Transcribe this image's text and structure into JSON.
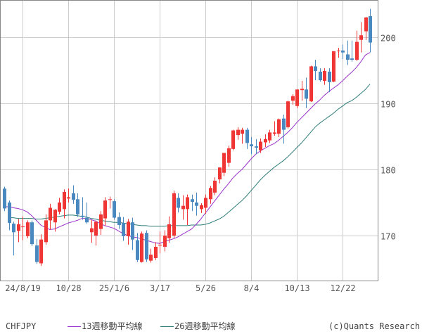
{
  "symbol": "CHFJPY",
  "copyright": "(c)Quants Research",
  "colors": {
    "up": "#f03535",
    "down": "#4a89c0",
    "ma13": "#9933cc",
    "ma26": "#2e7d7a",
    "grid": "#cccccc",
    "frame": "#888888"
  },
  "legend": {
    "ma13_label": "13週移動平均線",
    "ma26_label": "26週移動平均線"
  },
  "chart_data": {
    "type": "candlestick",
    "title": "CHFJPY",
    "xlabel": "",
    "ylabel": "",
    "ylim": [
      163.6,
      205.6
    ],
    "yticks": [
      170,
      180,
      190,
      200
    ],
    "xticks": [
      {
        "index": 4,
        "label": "24/8/19"
      },
      {
        "index": 14,
        "label": "10/28"
      },
      {
        "index": 24,
        "label": "25/1/6"
      },
      {
        "index": 34,
        "label": "3/17"
      },
      {
        "index": 44,
        "label": "5/26"
      },
      {
        "index": 54,
        "label": "8/4"
      },
      {
        "index": 64,
        "label": "10/13"
      },
      {
        "index": 74,
        "label": "12/22"
      }
    ],
    "grid": true,
    "legend_position": "bottom",
    "series": [
      {
        "name": "CHFJPY",
        "type": "candlestick",
        "ohlc": [
          [
            177.1,
            177.4,
            173.7,
            174.1
          ],
          [
            175.0,
            175.3,
            170.8,
            171.9
          ],
          [
            171.8,
            172.1,
            167.0,
            170.5
          ],
          [
            170.7,
            172.5,
            169.0,
            171.7
          ],
          [
            171.3,
            172.9,
            169.3,
            171.4
          ],
          [
            169.9,
            172.3,
            169.6,
            172.0
          ],
          [
            172.0,
            172.3,
            168.4,
            168.7
          ],
          [
            168.5,
            169.5,
            165.7,
            166.0
          ],
          [
            165.8,
            170.2,
            165.4,
            169.4
          ],
          [
            169.0,
            173.2,
            168.6,
            172.3
          ],
          [
            172.3,
            174.8,
            170.9,
            174.2
          ],
          [
            172.0,
            174.0,
            170.6,
            173.9
          ],
          [
            173.6,
            175.7,
            173.2,
            175.0
          ],
          [
            174.0,
            177.0,
            172.6,
            176.6
          ],
          [
            175.6,
            177.1,
            175.0,
            175.8
          ],
          [
            176.4,
            177.6,
            174.8,
            175.4
          ],
          [
            175.5,
            176.4,
            172.8,
            173.2
          ],
          [
            173.0,
            175.8,
            172.4,
            172.8
          ],
          [
            172.7,
            175.0,
            171.8,
            172.0
          ],
          [
            170.5,
            172.4,
            168.9,
            171.1
          ],
          [
            170.0,
            171.5,
            168.5,
            172.1
          ],
          [
            171.0,
            173.7,
            170.1,
            173.2
          ],
          [
            172.6,
            175.8,
            171.5,
            175.3
          ],
          [
            175.5,
            175.9,
            174.1,
            175.5
          ],
          [
            175.2,
            175.5,
            172.4,
            172.7
          ],
          [
            172.8,
            173.5,
            171.0,
            171.6
          ],
          [
            171.9,
            172.8,
            169.2,
            169.9
          ],
          [
            169.9,
            172.5,
            168.6,
            172.1
          ],
          [
            172.0,
            172.7,
            167.8,
            169.4
          ],
          [
            169.3,
            170.4,
            166.0,
            166.3
          ],
          [
            166.0,
            170.6,
            165.9,
            170.3
          ],
          [
            170.4,
            170.8,
            166.0,
            166.4
          ],
          [
            166.2,
            168.0,
            165.9,
            167.1
          ],
          [
            166.6,
            169.0,
            166.3,
            168.3
          ],
          [
            168.5,
            170.6,
            167.3,
            168.6
          ],
          [
            168.3,
            170.8,
            167.6,
            170.0
          ],
          [
            169.6,
            172.9,
            168.9,
            171.7
          ],
          [
            170.0,
            176.8,
            169.6,
            176.4
          ],
          [
            175.7,
            176.4,
            173.5,
            174.2
          ],
          [
            174.0,
            176.1,
            172.4,
            174.5
          ],
          [
            174.0,
            176.2,
            171.6,
            175.8
          ],
          [
            175.5,
            176.2,
            173.7,
            175.1
          ],
          [
            175.0,
            176.5,
            173.0,
            174.5
          ],
          [
            174.0,
            174.9,
            173.4,
            174.6
          ],
          [
            174.2,
            176.2,
            173.3,
            175.7
          ],
          [
            175.5,
            177.5,
            174.8,
            177.2
          ],
          [
            176.5,
            178.8,
            176.1,
            178.3
          ],
          [
            178.5,
            180.3,
            177.9,
            180.3
          ],
          [
            179.5,
            181.8,
            179.0,
            182.5
          ],
          [
            181.0,
            183.6,
            180.4,
            183.2
          ],
          [
            183.1,
            186.0,
            182.9,
            185.9
          ],
          [
            185.2,
            186.4,
            184.5,
            186.0
          ],
          [
            185.4,
            186.3,
            183.9,
            186.0
          ],
          [
            186.0,
            186.3,
            183.1,
            184.0
          ],
          [
            183.8,
            184.9,
            182.3,
            183.5
          ],
          [
            183.5,
            184.6,
            182.3,
            183.3
          ],
          [
            182.9,
            184.7,
            182.5,
            184.2
          ],
          [
            184.1,
            185.3,
            183.4,
            184.6
          ],
          [
            184.4,
            186.0,
            184.0,
            185.6
          ],
          [
            185.4,
            187.3,
            185.1,
            185.6
          ],
          [
            185.4,
            187.7,
            184.9,
            187.6
          ],
          [
            187.7,
            188.3,
            183.9,
            186.0
          ],
          [
            186.4,
            190.4,
            186.2,
            190.3
          ],
          [
            190.4,
            191.4,
            189.8,
            191.1
          ],
          [
            189.6,
            192.1,
            189.3,
            192.1
          ],
          [
            192.0,
            193.4,
            190.4,
            192.2
          ],
          [
            192.1,
            193.9,
            189.3,
            190.7
          ],
          [
            190.3,
            195.7,
            190.2,
            195.6
          ],
          [
            195.6,
            196.6,
            193.5,
            194.9
          ],
          [
            194.8,
            195.3,
            193.3,
            193.5
          ],
          [
            193.4,
            195.3,
            192.8,
            194.9
          ],
          [
            194.8,
            195.3,
            191.7,
            193.2
          ],
          [
            193.3,
            197.0,
            193.2,
            197.9
          ],
          [
            197.9,
            198.4,
            196.9,
            198.0
          ],
          [
            198.0,
            198.9,
            196.7,
            197.7
          ],
          [
            197.4,
            199.5,
            195.8,
            196.6
          ],
          [
            196.8,
            199.5,
            196.3,
            196.6
          ],
          [
            196.6,
            201.0,
            196.4,
            199.3
          ],
          [
            199.6,
            202.3,
            197.7,
            200.3
          ],
          [
            200.9,
            203.1,
            199.6,
            203.0
          ],
          [
            203.2,
            204.3,
            197.7,
            199.2
          ]
        ]
      },
      {
        "name": "13週移動平均線",
        "type": "line",
        "values": [
          174.3,
          174.4,
          174.2,
          174.1,
          173.9,
          173.6,
          173.0,
          172.3,
          171.6,
          171.2,
          170.9,
          171.0,
          171.3,
          171.6,
          171.9,
          172.1,
          172.3,
          172.6,
          172.6,
          172.4,
          172.2,
          171.8,
          171.5,
          171.3,
          171.1,
          170.7,
          170.3,
          170.0,
          169.8,
          169.7,
          169.5,
          169.3,
          169.1,
          168.9,
          168.8,
          169.1,
          169.3,
          169.5,
          169.8,
          170.2,
          170.6,
          171.0,
          171.7,
          172.5,
          173.4,
          174.3,
          175.2,
          176.1,
          177.0,
          177.8,
          178.7,
          179.4,
          180.0,
          180.8,
          181.6,
          182.3,
          182.8,
          183.2,
          183.6,
          183.9,
          184.4,
          185.0,
          185.6,
          186.3,
          187.1,
          187.8,
          188.5,
          189.2,
          189.9,
          190.5,
          191.2,
          191.8,
          192.3,
          192.8,
          193.4,
          194.1,
          194.7,
          195.4,
          196.3,
          197.3,
          197.7
        ]
      },
      {
        "name": "26週移動平均線",
        "type": "line",
        "values": [
          null,
          172.7,
          172.7,
          172.6,
          172.6,
          172.6,
          172.6,
          172.5,
          172.5,
          172.6,
          172.7,
          172.8,
          172.9,
          173.0,
          173.1,
          173.1,
          173.0,
          172.9,
          172.8,
          172.6,
          172.5,
          172.3,
          172.2,
          172.1,
          172.0,
          172.0,
          171.9,
          171.8,
          171.7,
          171.6,
          171.5,
          171.5,
          171.4,
          171.4,
          171.4,
          171.4,
          171.5,
          171.5,
          171.5,
          171.5,
          171.5,
          171.6,
          171.6,
          171.6,
          171.7,
          171.9,
          172.2,
          172.5,
          172.9,
          173.5,
          174.1,
          174.7,
          175.3,
          176.0,
          176.8,
          177.6,
          178.4,
          179.1,
          179.7,
          180.3,
          180.8,
          181.3,
          181.9,
          182.6,
          183.3,
          184.0,
          184.8,
          185.6,
          186.4,
          187.0,
          187.5,
          188.0,
          188.5,
          189.1,
          189.6,
          190.1,
          190.4,
          190.9,
          191.5,
          192.1,
          192.9
        ]
      }
    ]
  }
}
